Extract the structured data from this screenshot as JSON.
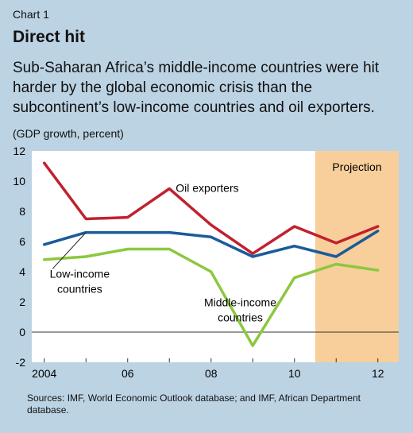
{
  "header": {
    "chart_number": "Chart 1",
    "title": "Direct hit",
    "subtitle": "Sub-Saharan Africa’s middle-income countries were hit harder by the global economic crisis than the subcontinent’s low-income countries and oil exporters.",
    "unit_label": "(GDP growth, percent)"
  },
  "footer": {
    "source": "Sources: IMF, World Economic Outlook database; and IMF, African Department database."
  },
  "colors": {
    "background": "#bcd3e3",
    "plot_background": "#ffffff",
    "projection_band": "#f8cf9a",
    "oil_exporters": "#c2202f",
    "low_income": "#1a5b9a",
    "middle_income": "#8cc83f"
  },
  "chart_data": {
    "type": "line",
    "x": [
      2004,
      2005,
      2006,
      2007,
      2008,
      2009,
      2010,
      2011,
      2012
    ],
    "x_tick_labels": [
      "2004",
      "06",
      "08",
      "10",
      "12"
    ],
    "x_tick_values": [
      2004,
      2006,
      2008,
      2010,
      2012
    ],
    "y_ticks": [
      -2,
      0,
      2,
      4,
      6,
      8,
      10,
      12
    ],
    "ylim": [
      -2,
      12
    ],
    "grid": false,
    "projection": {
      "label": "Projection",
      "from_x": 2010.5,
      "to_x": 2012.5
    },
    "series": [
      {
        "name": "Oil exporters",
        "values": [
          11.2,
          7.5,
          7.6,
          9.5,
          7.1,
          5.2,
          7.0,
          5.9,
          7.0
        ]
      },
      {
        "name": "Low-income countries",
        "values": [
          5.8,
          6.6,
          6.6,
          6.6,
          6.3,
          5.0,
          5.7,
          5.0,
          6.7
        ]
      },
      {
        "name": "Middle-income countries",
        "values": [
          4.8,
          5.0,
          5.5,
          5.5,
          4.0,
          -0.9,
          3.6,
          4.5,
          4.1
        ]
      }
    ],
    "labels": {
      "oil": "Oil exporters",
      "low_line1": "Low-income",
      "low_line2": "countries",
      "mid_line1": "Middle-income",
      "mid_line2": "countries"
    }
  }
}
